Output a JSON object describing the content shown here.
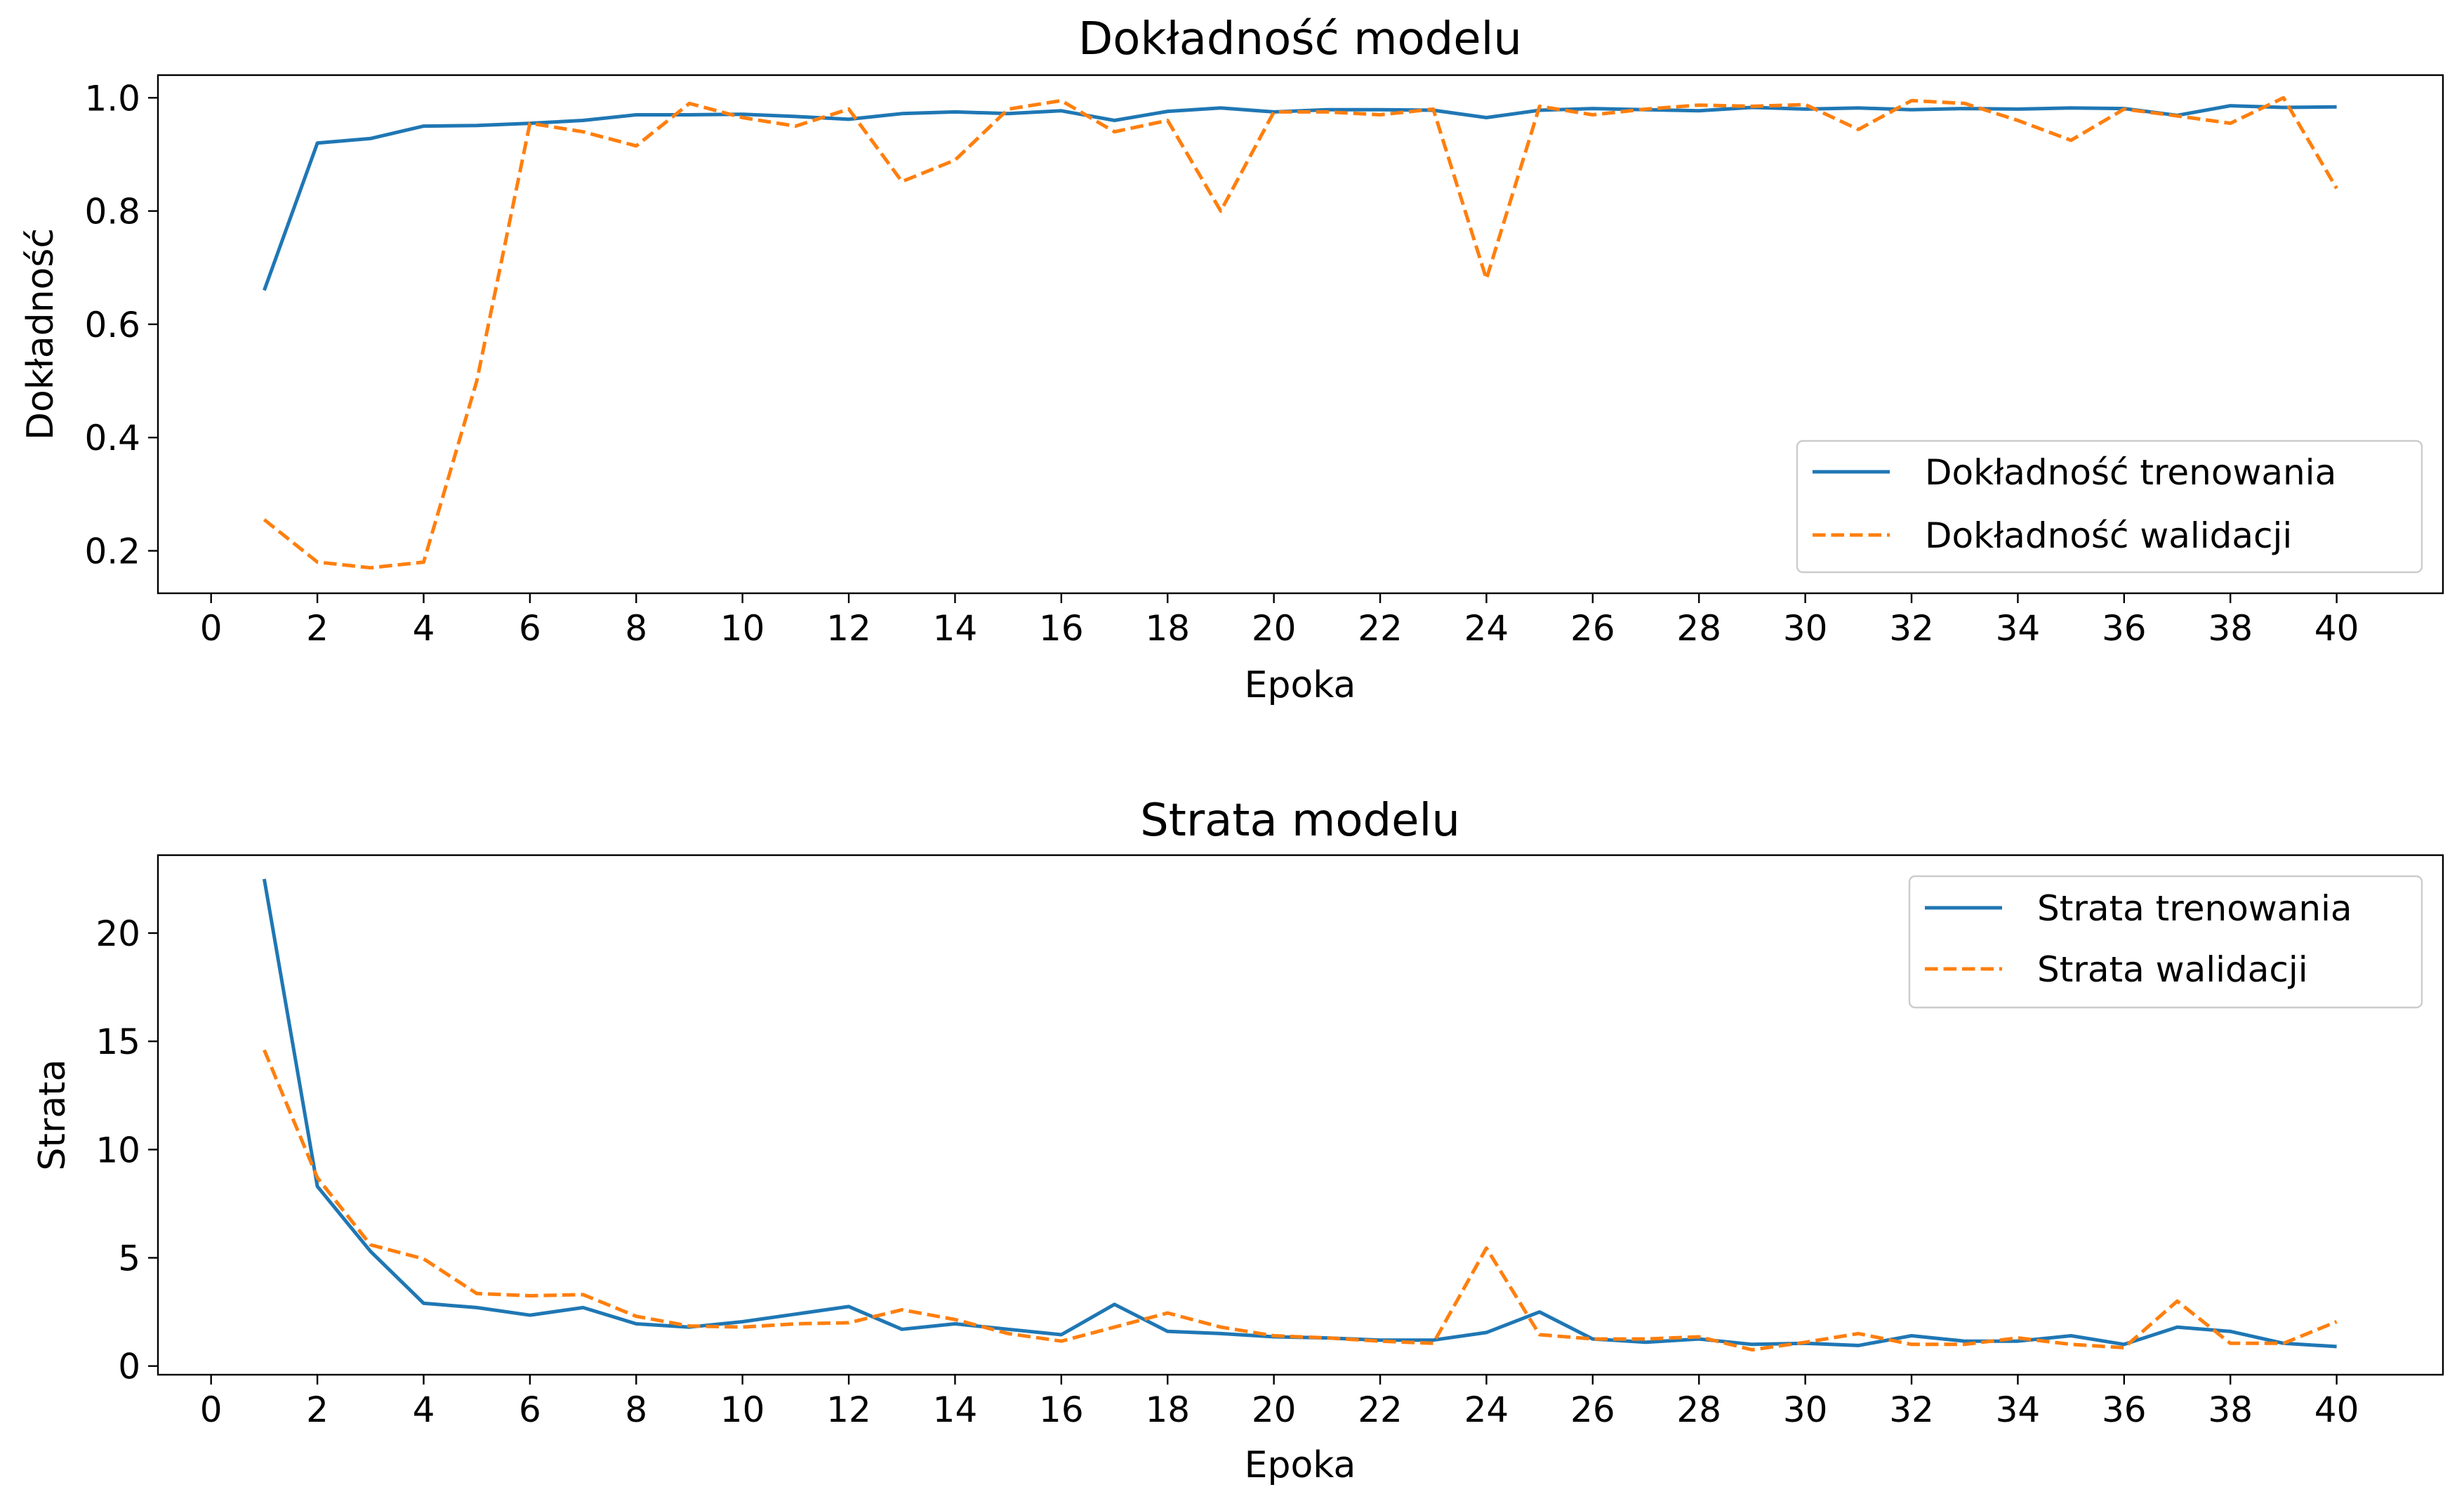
{
  "chart_data": [
    {
      "type": "line",
      "title": "Dokładność modelu",
      "xlabel": "Epoka",
      "ylabel": "Dokładność",
      "x": [
        1,
        2,
        3,
        4,
        5,
        6,
        7,
        8,
        9,
        10,
        11,
        12,
        13,
        14,
        15,
        16,
        17,
        18,
        19,
        20,
        21,
        22,
        23,
        24,
        25,
        26,
        27,
        28,
        29,
        30,
        31,
        32,
        33,
        34,
        35,
        36,
        37,
        38,
        39,
        40
      ],
      "xticks": [
        0,
        2,
        4,
        6,
        8,
        10,
        12,
        14,
        16,
        18,
        20,
        22,
        24,
        26,
        28,
        30,
        32,
        34,
        36,
        38,
        40
      ],
      "yticks": [
        0.2,
        0.4,
        0.6,
        0.8,
        1.0
      ],
      "ytick_labels": [
        "0.2",
        "0.4",
        "0.6",
        "0.8",
        "1.0"
      ],
      "xlim": [
        -1.0,
        42.0
      ],
      "ylim": [
        0.125,
        1.04
      ],
      "grid": false,
      "legend_position": "lower right",
      "series": [
        {
          "name": "Dokładność trenowania",
          "color": "#1f77b4",
          "style": "solid",
          "values": [
            0.66,
            0.92,
            0.928,
            0.95,
            0.951,
            0.955,
            0.96,
            0.97,
            0.97,
            0.971,
            0.967,
            0.962,
            0.972,
            0.975,
            0.972,
            0.977,
            0.96,
            0.976,
            0.982,
            0.975,
            0.979,
            0.979,
            0.978,
            0.965,
            0.978,
            0.981,
            0.979,
            0.977,
            0.983,
            0.98,
            0.982,
            0.979,
            0.981,
            0.98,
            0.982,
            0.981,
            0.969,
            0.986,
            0.983,
            0.984
          ]
        },
        {
          "name": "Dokładność walidacji",
          "color": "#ff7f0e",
          "style": "dashed",
          "values": [
            0.255,
            0.18,
            0.17,
            0.18,
            0.5,
            0.955,
            0.94,
            0.915,
            0.99,
            0.965,
            0.95,
            0.98,
            0.852,
            0.89,
            0.98,
            0.995,
            0.94,
            0.96,
            0.8,
            0.975,
            0.975,
            0.97,
            0.98,
            0.68,
            0.985,
            0.97,
            0.98,
            0.987,
            0.985,
            0.988,
            0.944,
            0.995,
            0.99,
            0.96,
            0.925,
            0.98,
            0.968,
            0.955,
            1.0,
            0.84
          ]
        }
      ]
    },
    {
      "type": "line",
      "title": "Strata modelu",
      "xlabel": "Epoka",
      "ylabel": "Strata",
      "x": [
        1,
        2,
        3,
        4,
        5,
        6,
        7,
        8,
        9,
        10,
        11,
        12,
        13,
        14,
        15,
        16,
        17,
        18,
        19,
        20,
        21,
        22,
        23,
        24,
        25,
        26,
        27,
        28,
        29,
        30,
        31,
        32,
        33,
        34,
        35,
        36,
        37,
        38,
        39,
        40
      ],
      "xticks": [
        0,
        2,
        4,
        6,
        8,
        10,
        12,
        14,
        16,
        18,
        20,
        22,
        24,
        26,
        28,
        30,
        32,
        34,
        36,
        38,
        40
      ],
      "yticks": [
        0,
        5,
        10,
        15,
        20
      ],
      "ytick_labels": [
        "0",
        "5",
        "10",
        "15",
        "20"
      ],
      "xlim": [
        -1.0,
        42.0
      ],
      "ylim": [
        -0.4,
        23.6
      ],
      "grid": false,
      "legend_position": "upper right",
      "series": [
        {
          "name": "Strata trenowania",
          "color": "#1f77b4",
          "style": "solid",
          "values": [
            22.5,
            8.3,
            5.3,
            2.9,
            2.7,
            2.35,
            2.7,
            1.95,
            1.8,
            2.05,
            2.4,
            2.75,
            1.7,
            1.95,
            1.7,
            1.45,
            2.85,
            1.6,
            1.5,
            1.35,
            1.3,
            1.2,
            1.2,
            1.55,
            2.5,
            1.25,
            1.1,
            1.25,
            1.0,
            1.05,
            0.95,
            1.4,
            1.15,
            1.15,
            1.4,
            1.0,
            1.8,
            1.6,
            1.05,
            0.9
          ]
        },
        {
          "name": "Strata walidacji",
          "color": "#ff7f0e",
          "style": "dashed",
          "values": [
            14.6,
            8.7,
            5.6,
            4.95,
            3.35,
            3.25,
            3.3,
            2.3,
            1.85,
            1.8,
            1.95,
            2.0,
            2.6,
            2.15,
            1.5,
            1.15,
            1.8,
            2.45,
            1.8,
            1.4,
            1.3,
            1.15,
            1.05,
            5.45,
            1.45,
            1.25,
            1.25,
            1.35,
            0.75,
            1.1,
            1.5,
            1.0,
            1.0,
            1.3,
            1.0,
            0.85,
            3.0,
            1.05,
            1.05,
            2.05
          ]
        }
      ]
    }
  ]
}
